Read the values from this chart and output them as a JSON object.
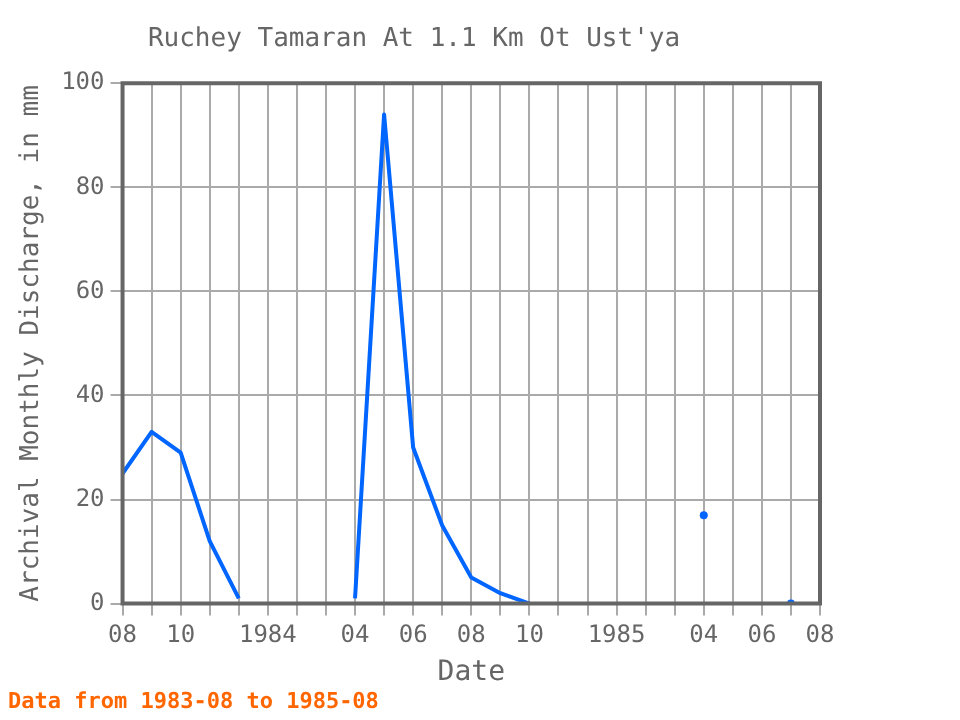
{
  "chart_data": {
    "type": "line",
    "title": "Ruchey Tamaran At 1.1 Km Ot Ust'ya",
    "xlabel": "Date",
    "ylabel": "Archival Monthly Discharge, in mm",
    "annotations": [
      "Data from 1983-08 to 1985-08"
    ],
    "x": [
      "1983-08",
      "1983-09",
      "1983-10",
      "1983-11",
      "1983-12",
      "1984-01",
      "1984-02",
      "1984-03",
      "1984-04",
      "1984-05",
      "1984-06",
      "1984-07",
      "1984-08",
      "1984-09",
      "1984-10",
      "1984-11",
      "1984-12",
      "1985-01",
      "1985-02",
      "1985-03",
      "1985-04",
      "1985-05",
      "1985-06",
      "1985-07"
    ],
    "series": [
      {
        "color": "#0066ff",
        "values": [
          25,
          33,
          29,
          12,
          1,
          null,
          null,
          null,
          1,
          94,
          30,
          15,
          5,
          2,
          0,
          null,
          null,
          null,
          null,
          null,
          17,
          null,
          null,
          0
        ]
      }
    ],
    "xlim": [
      "1983-08",
      "1985-08"
    ],
    "xticks": [
      {
        "value": "1983-08",
        "label": "08"
      },
      {
        "value": "1983-09",
        "label": null
      },
      {
        "value": "1983-10",
        "label": "10"
      },
      {
        "value": "1983-11",
        "label": null
      },
      {
        "value": "1983-12",
        "label": null
      },
      {
        "value": "1984-01",
        "label": "1984"
      },
      {
        "value": "1984-02",
        "label": null
      },
      {
        "value": "1984-03",
        "label": null
      },
      {
        "value": "1984-04",
        "label": "04"
      },
      {
        "value": "1984-05",
        "label": null
      },
      {
        "value": "1984-06",
        "label": "06"
      },
      {
        "value": "1984-07",
        "label": null
      },
      {
        "value": "1984-08",
        "label": "08"
      },
      {
        "value": "1984-09",
        "label": null
      },
      {
        "value": "1984-10",
        "label": "10"
      },
      {
        "value": "1984-11",
        "label": null
      },
      {
        "value": "1984-12",
        "label": null
      },
      {
        "value": "1985-01",
        "label": "1985"
      },
      {
        "value": "1985-02",
        "label": null
      },
      {
        "value": "1985-03",
        "label": null
      },
      {
        "value": "1985-04",
        "label": "04"
      },
      {
        "value": "1985-05",
        "label": null
      },
      {
        "value": "1985-06",
        "label": "06"
      },
      {
        "value": "1985-07",
        "label": null
      },
      {
        "value": "1985-08",
        "label": "08"
      }
    ],
    "ylim": [
      0,
      100
    ],
    "yticks": [
      0,
      20,
      40,
      60,
      80,
      100
    ],
    "grid": true,
    "legend": false,
    "marker": "none",
    "line_style": "solid"
  }
}
